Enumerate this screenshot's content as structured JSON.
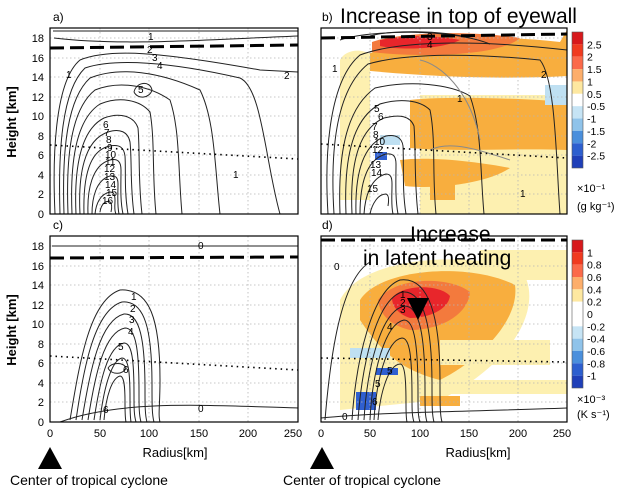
{
  "chart_data": [
    {
      "type": "contour",
      "panel_label": "a)",
      "xlabel": "",
      "ylabel": "Height [km]",
      "xlim": [
        0,
        250
      ],
      "ylim": [
        0,
        19
      ],
      "yticks": [
        0,
        2,
        4,
        6,
        8,
        10,
        12,
        14,
        16,
        18
      ],
      "xticks": [],
      "tropopause_dashed_height_km": 16.9,
      "melting_level_dotted_height_km": 5.7,
      "contour_labels": [
        "1",
        "2",
        "3",
        "4",
        "5",
        "6",
        "7",
        "8",
        "9",
        "10",
        "11",
        "12",
        "13",
        "14",
        "15",
        "16"
      ],
      "grid": true
    },
    {
      "type": "contour",
      "panel_label": "b)",
      "title": "Increase in top of eyewall",
      "xlabel": "",
      "ylabel": "",
      "xlim": [
        0,
        250
      ],
      "ylim": [
        0,
        19
      ],
      "tropopause_dashed_height_km": 17.3,
      "melting_level_dotted_height_km": 5.7,
      "contour_labels": [
        "1",
        "2",
        "3",
        "4",
        "5",
        "6",
        "7",
        "8",
        "9",
        "10",
        "11",
        "12",
        "13",
        "14",
        "15"
      ],
      "colorbar": {
        "ticks": [
          "2.5",
          "2",
          "1.5",
          "1",
          "0.5",
          "-0.5",
          "-1",
          "-1.5",
          "-2",
          "-2.5"
        ],
        "colors": [
          "#d7191c",
          "#f03b20",
          "#fb6a4a",
          "#fdae6b",
          "#fee8a0",
          "#ffffff",
          "#c6e4f5",
          "#8fc3ea",
          "#4a8fdc",
          "#2d5fcf",
          "#1f3fb8"
        ],
        "unit_exponent": "×10⁻¹",
        "unit": "(g kg⁻¹)"
      },
      "grid": true
    },
    {
      "type": "contour",
      "panel_label": "c)",
      "xlabel": "Radius[km]",
      "ylabel": "Height [km]",
      "xlim": [
        0,
        250
      ],
      "ylim": [
        0,
        19
      ],
      "xticks": [
        0,
        50,
        100,
        150,
        200,
        250
      ],
      "yticks": [
        0,
        2,
        4,
        6,
        8,
        10,
        12,
        14,
        16,
        18
      ],
      "tropopause_dashed_height_km": 16.9,
      "melting_level_dotted_height_km": 5.7,
      "contour_labels": [
        "0",
        "1",
        "2",
        "3",
        "4",
        "5",
        "6",
        "6",
        "0"
      ],
      "grid": true
    },
    {
      "type": "contour",
      "panel_label": "d)",
      "title_line1": "Increase",
      "title_line2": "in latent heating",
      "xlabel": "Radius[km]",
      "ylabel": "",
      "xlim": [
        0,
        250
      ],
      "ylim": [
        0,
        19
      ],
      "xticks": [
        0,
        50,
        100,
        150,
        200,
        250
      ],
      "tropopause_dashed_height_km": 18.3,
      "melting_level_dotted_height_km": 6.3,
      "contour_labels": [
        "1",
        "2",
        "3",
        "4",
        "5",
        "5",
        "6",
        "0"
      ],
      "colorbar": {
        "ticks": [
          "1",
          "0.8",
          "0.6",
          "0.4",
          "0.2",
          "0",
          "-0.2",
          "-0.4",
          "-0.6",
          "-0.8",
          "-1"
        ],
        "colors": [
          "#d7191c",
          "#f03b20",
          "#fb6a4a",
          "#fdae6b",
          "#fee8a0",
          "#ffffff",
          "#ffffff",
          "#c6e4f5",
          "#8fc3ea",
          "#4a8fdc",
          "#2d5fcf",
          "#1f3fb8"
        ],
        "unit_exponent": "×10⁻³",
        "unit": "(K s⁻¹)"
      },
      "grid": true
    }
  ],
  "annotations": {
    "center_label_left": "Center of tropical cyclone",
    "center_label_right": "Center of tropical cyclone"
  },
  "colors": {
    "red": "#e8262b",
    "orange": "#f8ae3e",
    "lightyellow": "#fdf0b0",
    "blue": "#2f5fd0",
    "lightblue": "#bfe0f2"
  }
}
